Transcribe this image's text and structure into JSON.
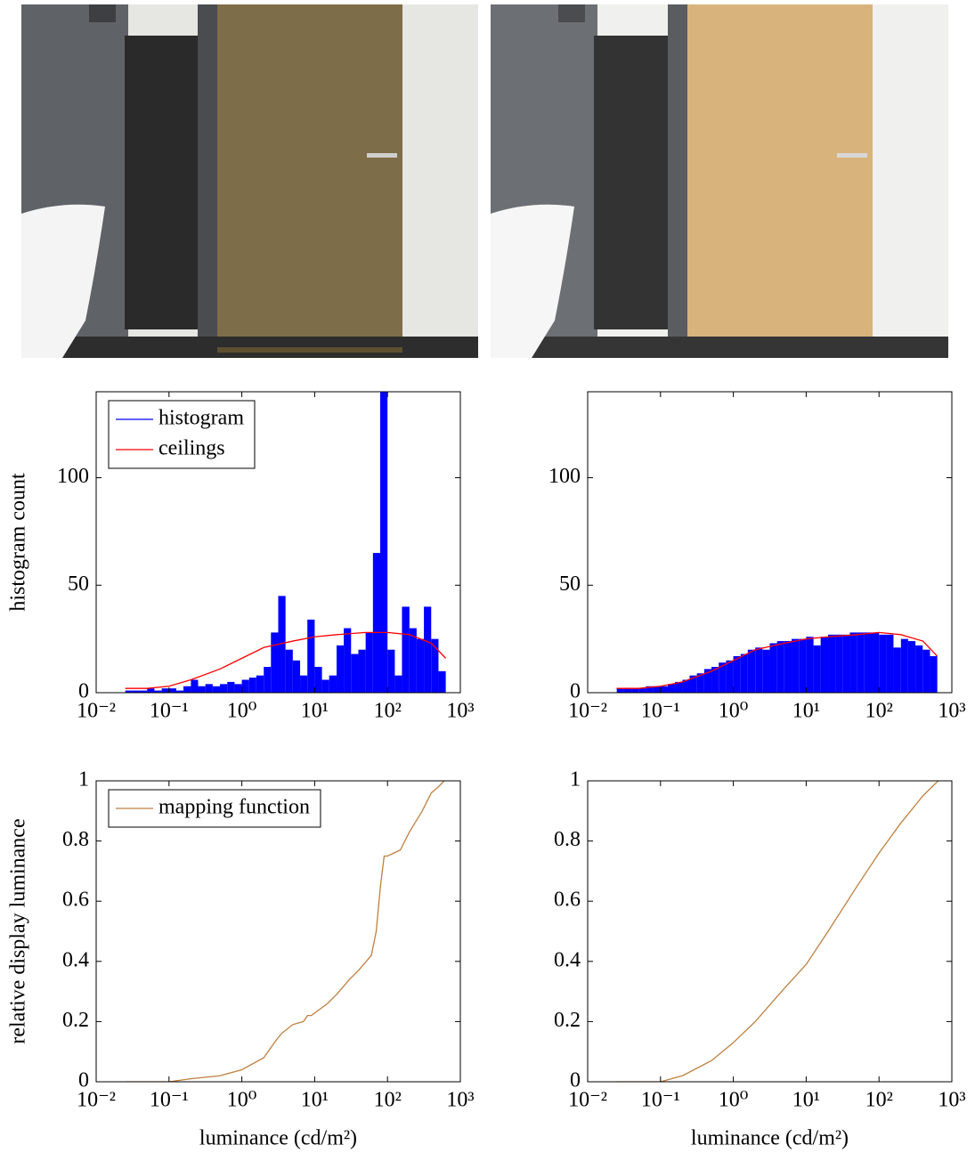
{
  "chart_data": [
    {
      "type": "histogram",
      "xscale": "log",
      "grid": false,
      "legend": "upper left",
      "ylabel": "histogram count",
      "xlim": [
        0.01,
        1000
      ],
      "ylim": [
        0,
        140
      ],
      "xticks": [
        {
          "value": 0.01,
          "label": "10⁻²"
        },
        {
          "value": 0.1,
          "label": "10⁻¹"
        },
        {
          "value": 1,
          "label": "10⁰"
        },
        {
          "value": 10,
          "label": "10¹"
        },
        {
          "value": 100,
          "label": "10²"
        },
        {
          "value": 1000,
          "label": "10³"
        }
      ],
      "yticks": [
        0,
        50,
        100
      ],
      "bins": [
        0.0251,
        0.0316,
        0.0398,
        0.0501,
        0.0631,
        0.0794,
        0.1,
        0.126,
        0.158,
        0.2,
        0.251,
        0.316,
        0.398,
        0.501,
        0.631,
        0.794,
        1,
        1.26,
        1.58,
        2,
        2.51,
        3.16,
        3.98,
        5.01,
        6.31,
        7.94,
        10,
        12.6,
        15.8,
        20,
        25.1,
        31.6,
        39.8,
        50.1,
        63.1,
        79.4,
        100,
        126,
        158,
        200,
        251,
        316,
        398,
        501,
        631
      ],
      "series": [
        {
          "name": "histogram",
          "color": "#0000ff",
          "values": [
            1,
            1,
            1,
            2,
            1,
            2,
            2,
            1,
            3,
            6,
            3,
            4,
            3,
            4,
            5,
            4,
            6,
            7,
            8,
            12,
            28,
            45,
            20,
            15,
            8,
            34,
            12,
            6,
            8,
            22,
            30,
            18,
            20,
            28,
            65,
            140,
            20,
            8,
            40,
            30,
            25,
            40,
            25,
            10
          ]
        },
        {
          "name": "ceilings",
          "color": "#ff0000",
          "x": [
            0.025,
            0.05,
            0.1,
            0.2,
            0.5,
            1,
            2,
            5,
            10,
            20,
            50,
            100,
            200,
            400,
            630
          ],
          "values": [
            2,
            2,
            3,
            6,
            11,
            16,
            21,
            24,
            26,
            27,
            28,
            28,
            27,
            23,
            16
          ]
        }
      ]
    },
    {
      "type": "histogram",
      "xscale": "log",
      "grid": false,
      "xlim": [
        0.01,
        1000
      ],
      "ylim": [
        0,
        140
      ],
      "xticks": [
        {
          "value": 0.01,
          "label": "10⁻²"
        },
        {
          "value": 0.1,
          "label": "10⁻¹"
        },
        {
          "value": 1,
          "label": "10⁰"
        },
        {
          "value": 10,
          "label": "10¹"
        },
        {
          "value": 100,
          "label": "10²"
        },
        {
          "value": 1000,
          "label": "10³"
        }
      ],
      "yticks": [
        0,
        50,
        100
      ],
      "bins": [
        0.0251,
        0.0316,
        0.0398,
        0.0501,
        0.0631,
        0.0794,
        0.1,
        0.126,
        0.158,
        0.2,
        0.251,
        0.316,
        0.398,
        0.501,
        0.631,
        0.794,
        1,
        1.26,
        1.58,
        2,
        2.51,
        3.16,
        3.98,
        5.01,
        6.31,
        7.94,
        10,
        12.6,
        15.8,
        20,
        25.1,
        31.6,
        39.8,
        50.1,
        63.1,
        79.4,
        100,
        126,
        158,
        200,
        251,
        316,
        398,
        501,
        631
      ],
      "series": [
        {
          "color": "#0000ff",
          "values": [
            2,
            2,
            2,
            2,
            3,
            3,
            3,
            4,
            5,
            6,
            8,
            9,
            11,
            12,
            14,
            15,
            17,
            18,
            20,
            21,
            20,
            23,
            24,
            24,
            25,
            25,
            26,
            22,
            26,
            27,
            27,
            27,
            28,
            28,
            28,
            28,
            27,
            27,
            21,
            25,
            24,
            22,
            20,
            17
          ]
        },
        {
          "color": "#ff0000",
          "x": [
            0.025,
            0.05,
            0.1,
            0.2,
            0.5,
            1,
            2,
            5,
            10,
            20,
            50,
            100,
            200,
            400,
            630
          ],
          "values": [
            2,
            2,
            3,
            5,
            10,
            15,
            20,
            23,
            25,
            26,
            27,
            28,
            27,
            24,
            17
          ]
        }
      ]
    },
    {
      "type": "line",
      "xscale": "log",
      "grid": false,
      "legend": "upper left",
      "ylabel": "relative display luminance",
      "xlabel": "luminance (cd/m²)",
      "xlim": [
        0.01,
        1000
      ],
      "ylim": [
        0,
        1
      ],
      "xticks": [
        {
          "value": 0.01,
          "label": "10⁻²"
        },
        {
          "value": 0.1,
          "label": "10⁻¹"
        },
        {
          "value": 1,
          "label": "10⁰"
        },
        {
          "value": 10,
          "label": "10¹"
        },
        {
          "value": 100,
          "label": "10²"
        },
        {
          "value": 1000,
          "label": "10³"
        }
      ],
      "yticks": [
        0,
        0.2,
        0.4,
        0.6,
        0.8,
        1
      ],
      "series": [
        {
          "name": "mapping function",
          "color": "#bf8040",
          "x": [
            0.025,
            0.05,
            0.1,
            0.2,
            0.5,
            1,
            2,
            3,
            3.5,
            5,
            7,
            8,
            9,
            15,
            20,
            30,
            40,
            60,
            70,
            80,
            90,
            100,
            150,
            200,
            300,
            400,
            500,
            600
          ],
          "values": [
            0,
            0,
            0,
            0.01,
            0.02,
            0.04,
            0.08,
            0.14,
            0.16,
            0.19,
            0.2,
            0.22,
            0.22,
            0.26,
            0.29,
            0.34,
            0.37,
            0.42,
            0.5,
            0.65,
            0.75,
            0.75,
            0.77,
            0.83,
            0.9,
            0.96,
            0.98,
            1
          ]
        }
      ]
    },
    {
      "type": "line",
      "xscale": "log",
      "grid": false,
      "xlabel": "luminance (cd/m²)",
      "xlim": [
        0.01,
        1000
      ],
      "ylim": [
        0,
        1
      ],
      "xticks": [
        {
          "value": 0.01,
          "label": "10⁻²"
        },
        {
          "value": 0.1,
          "label": "10⁻¹"
        },
        {
          "value": 1,
          "label": "10⁰"
        },
        {
          "value": 10,
          "label": "10¹"
        },
        {
          "value": 100,
          "label": "10²"
        },
        {
          "value": 1000,
          "label": "10³"
        }
      ],
      "yticks": [
        0,
        0.2,
        0.4,
        0.6,
        0.8,
        1
      ],
      "series": [
        {
          "color": "#bf8040",
          "x": [
            0.025,
            0.05,
            0.1,
            0.2,
            0.5,
            1,
            2,
            5,
            10,
            20,
            50,
            100,
            200,
            400,
            650
          ],
          "values": [
            0,
            0,
            0,
            0.02,
            0.07,
            0.13,
            0.2,
            0.31,
            0.39,
            0.5,
            0.65,
            0.76,
            0.86,
            0.95,
            1
          ]
        }
      ]
    }
  ]
}
